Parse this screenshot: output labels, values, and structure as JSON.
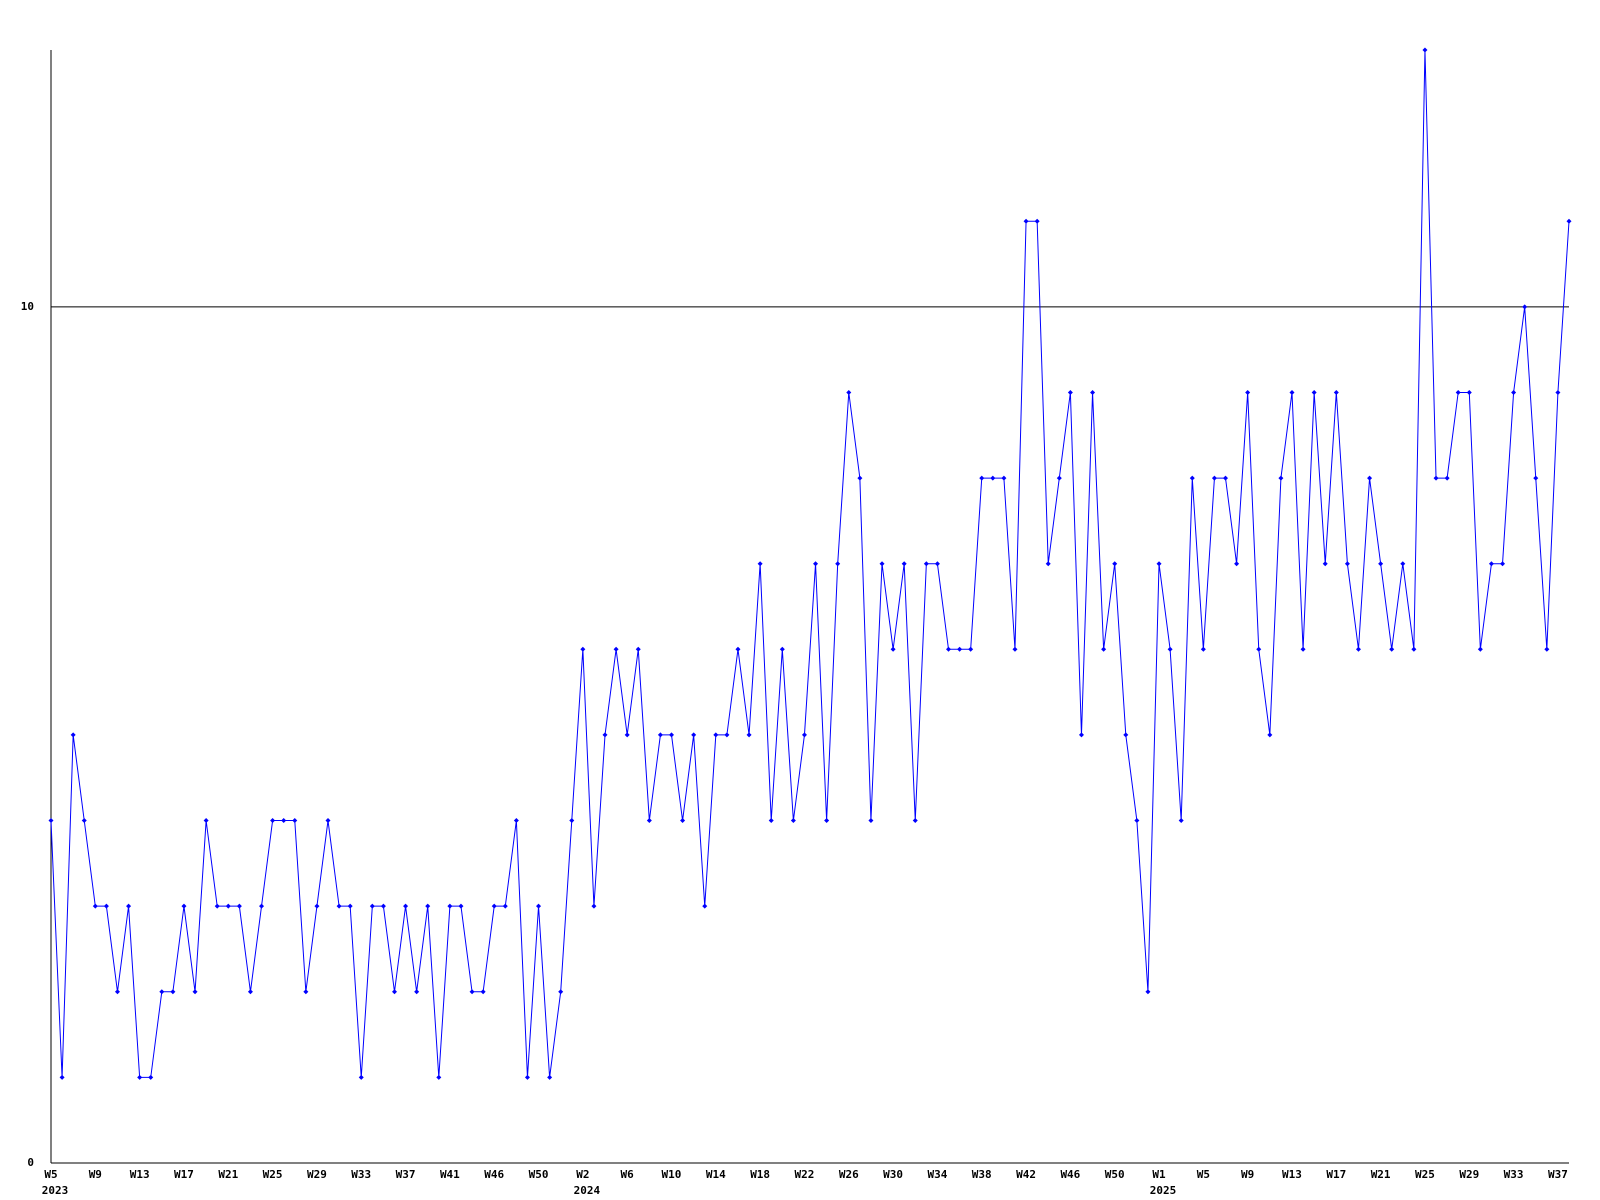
{
  "chart_data": {
    "type": "line",
    "categories": [
      "W5",
      null,
      null,
      null,
      "W9",
      null,
      null,
      null,
      "W13",
      null,
      null,
      null,
      "W17",
      null,
      null,
      null,
      "W21",
      null,
      null,
      null,
      "W25",
      null,
      null,
      null,
      "W29",
      null,
      null,
      null,
      "W33",
      null,
      null,
      null,
      "W37",
      null,
      null,
      null,
      "W41",
      null,
      null,
      null,
      "W46",
      null,
      null,
      null,
      "W50",
      null,
      null,
      null,
      "W2",
      null,
      null,
      null,
      "W6",
      null,
      null,
      null,
      "W10",
      null,
      null,
      null,
      "W14",
      null,
      null,
      null,
      "W18",
      null,
      null,
      null,
      "W22",
      null,
      null,
      null,
      "W26",
      null,
      null,
      null,
      "W30",
      null,
      null,
      null,
      "W34",
      null,
      null,
      null,
      "W38",
      null,
      null,
      null,
      "W42",
      null,
      null,
      null,
      "W46",
      null,
      null,
      null,
      "W50",
      null,
      null,
      null,
      "W1",
      null,
      null,
      null,
      "W5",
      null,
      null,
      null,
      "W9",
      null,
      null,
      null,
      "W13",
      null,
      null,
      null,
      "W17",
      null,
      null,
      null,
      "W21",
      null,
      null,
      null,
      "W25",
      null,
      null,
      null,
      "W29",
      null,
      null,
      null,
      "W33",
      null,
      null,
      null,
      "W37",
      null
    ],
    "category_years": [
      "2023",
      null,
      null,
      null,
      null,
      null,
      null,
      null,
      null,
      null,
      null,
      null,
      null,
      null,
      null,
      null,
      null,
      null,
      null,
      null,
      null,
      null,
      null,
      null,
      null,
      null,
      null,
      null,
      null,
      null,
      null,
      null,
      null,
      null,
      null,
      null,
      null,
      null,
      null,
      null,
      null,
      null,
      null,
      null,
      null,
      null,
      null,
      null,
      "2024",
      null,
      null,
      null,
      null,
      null,
      null,
      null,
      null,
      null,
      null,
      null,
      null,
      null,
      null,
      null,
      null,
      null,
      null,
      null,
      null,
      null,
      null,
      null,
      null,
      null,
      null,
      null,
      null,
      null,
      null,
      null,
      null,
      null,
      null,
      null,
      null,
      null,
      null,
      null,
      null,
      null,
      null,
      null,
      null,
      null,
      null,
      null,
      null,
      null,
      null,
      null,
      "2025",
      null,
      null,
      null,
      null,
      null,
      null,
      null,
      null,
      null,
      null,
      null,
      null,
      null,
      null,
      null,
      null,
      null,
      null,
      null,
      null,
      null,
      null,
      null,
      null,
      null,
      null,
      null,
      null,
      null,
      null,
      null,
      null,
      null,
      null,
      null,
      null,
      null
    ],
    "values": [
      4,
      1,
      5,
      4,
      3,
      3,
      2,
      3,
      1,
      1,
      2,
      2,
      3,
      2,
      4,
      3,
      3,
      3,
      2,
      3,
      4,
      4,
      4,
      2,
      3,
      4,
      3,
      3,
      1,
      3,
      3,
      2,
      3,
      2,
      3,
      1,
      3,
      3,
      2,
      2,
      3,
      3,
      4,
      1,
      3,
      1,
      2,
      4,
      6,
      3,
      5,
      6,
      5,
      6,
      4,
      5,
      5,
      4,
      5,
      3,
      5,
      5,
      6,
      5,
      7,
      4,
      6,
      4,
      5,
      7,
      4,
      7,
      9,
      8,
      4,
      7,
      6,
      7,
      4,
      7,
      7,
      6,
      6,
      6,
      8,
      8,
      8,
      6,
      11,
      11,
      7,
      8,
      9,
      5,
      9,
      6,
      7,
      5,
      4,
      2,
      7,
      6,
      4,
      8,
      6,
      8,
      8,
      7,
      9,
      6,
      5,
      8,
      9,
      6,
      9,
      7,
      9,
      7,
      6,
      8,
      7,
      6,
      7,
      6,
      13,
      8,
      8,
      9,
      9,
      6,
      7,
      7,
      9,
      10,
      8,
      6,
      9,
      11
    ],
    "color": "#0000ff",
    "ylim": [
      0,
      13
    ],
    "yticks": [
      0,
      10
    ],
    "grid": true
  }
}
